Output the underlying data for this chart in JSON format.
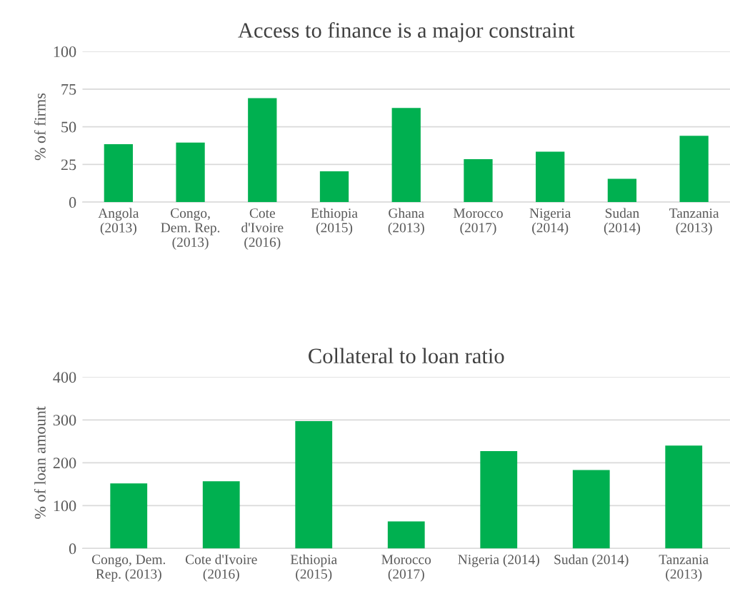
{
  "chart_data": [
    {
      "type": "bar",
      "title": "Access to finance is a major constraint",
      "ylabel": "% of firms",
      "categories": [
        "Angola\n(2013)",
        "Congo,\nDem. Rep.\n(2013)",
        "Cote\nd'Ivoire\n(2016)",
        "Ethiopia\n(2015)",
        "Ghana\n(2013)",
        "Morocco\n(2017)",
        "Nigeria\n(2014)",
        "Sudan\n(2014)",
        "Tanzania\n(2013)"
      ],
      "values": [
        38.5,
        39.5,
        69,
        20.5,
        62.5,
        28.5,
        33.5,
        15.5,
        44
      ],
      "color": "#00b050",
      "ylim": [
        0,
        100
      ],
      "yticks": [
        0,
        25,
        50,
        75,
        100
      ],
      "grid": "y"
    },
    {
      "type": "bar",
      "title": "Collateral to loan ratio",
      "ylabel": "% of loan amount",
      "categories": [
        "Congo, Dem.\nRep. (2013)",
        "Cote d'Ivoire\n(2016)",
        "Ethiopia\n(2015)",
        "Morocco\n(2017)",
        "Nigeria (2014)",
        "Sudan (2014)",
        "Tanzania\n(2013)"
      ],
      "values": [
        152,
        157,
        297,
        63,
        227,
        183,
        240
      ],
      "color": "#00b050",
      "ylim": [
        0,
        400
      ],
      "yticks": [
        0,
        100,
        200,
        300,
        400
      ],
      "grid": "y"
    }
  ]
}
